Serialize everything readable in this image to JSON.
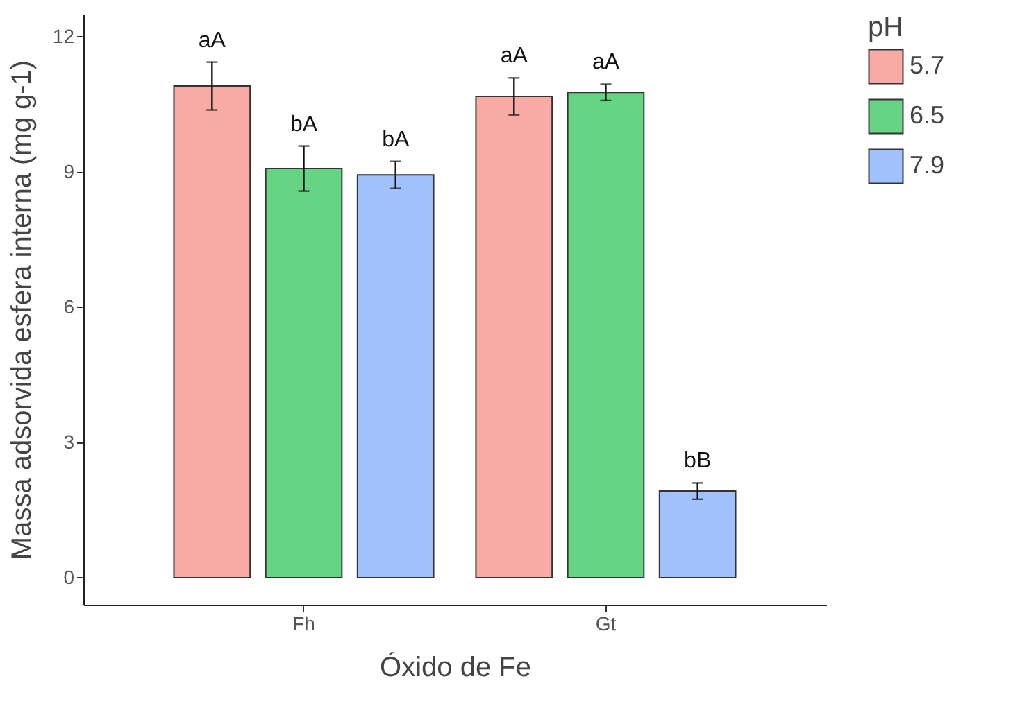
{
  "chart_data": {
    "type": "bar",
    "xlabel": "Óxido de Fe",
    "ylabel": "Massa adsorvida esfera interna (mg g-1)",
    "legend_title": "pH",
    "legend": "right",
    "grid": false,
    "categories": [
      "Fh",
      "Gt"
    ],
    "ylim": [
      -0.6,
      12.5
    ],
    "yticks": [
      0,
      3,
      6,
      9,
      12
    ],
    "series": [
      {
        "name": "5.7",
        "color": "#f8aba5",
        "values": [
          10.9,
          10.67
        ],
        "errors": [
          0.53,
          0.41
        ],
        "value_labels": [
          "aA",
          "aA"
        ]
      },
      {
        "name": "6.5",
        "color": "#66d485",
        "values": [
          9.07,
          10.76
        ],
        "errors": [
          0.5,
          0.18
        ],
        "value_labels": [
          "bA",
          "aA"
        ]
      },
      {
        "name": "7.9",
        "color": "#a0c1fb",
        "values": [
          8.93,
          1.92
        ],
        "errors": [
          0.3,
          0.18
        ],
        "value_labels": [
          "bA",
          "bB"
        ]
      }
    ]
  }
}
